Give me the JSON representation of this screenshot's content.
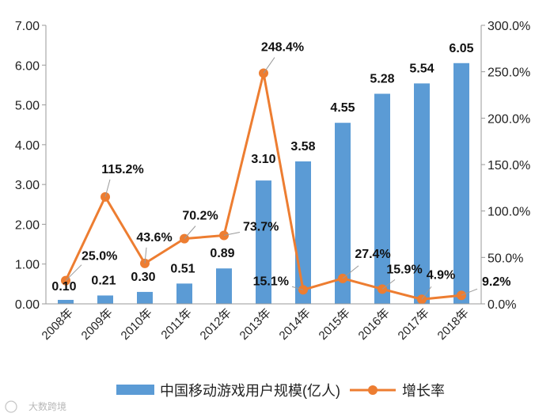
{
  "chart_data": {
    "type": "bar",
    "categories": [
      "2008年",
      "2009年",
      "2010年",
      "2011年",
      "2012年",
      "2013年",
      "2014年",
      "2015年",
      "2016年",
      "2017年",
      "2018年"
    ],
    "series": [
      {
        "name": "中国移动游戏用户规模(亿人)",
        "type": "bar",
        "axis": "left",
        "values": [
          0.1,
          0.21,
          0.3,
          0.51,
          0.89,
          3.1,
          3.58,
          4.55,
          5.28,
          5.54,
          6.05
        ],
        "labels": [
          "0.10",
          "0.21",
          "0.30",
          "0.51",
          "0.89",
          "3.10",
          "3.58",
          "4.55",
          "5.28",
          "5.54",
          "6.05"
        ],
        "color": "#5b9bd5"
      },
      {
        "name": "增长率",
        "type": "line",
        "axis": "right",
        "values": [
          25.0,
          115.2,
          43.6,
          70.2,
          73.7,
          248.4,
          15.1,
          27.4,
          15.9,
          4.9,
          9.2
        ],
        "labels": [
          "25.0%",
          "115.2%",
          "43.6%",
          "70.2%",
          "73.7%",
          "248.4%",
          "15.1%",
          "27.4%",
          "15.9%",
          "4.9%",
          "9.2%"
        ],
        "color": "#ed7d31"
      }
    ],
    "y_left": {
      "min": 0,
      "max": 7,
      "ticks": [
        "0.00",
        "1.00",
        "2.00",
        "3.00",
        "4.00",
        "5.00",
        "6.00",
        "7.00"
      ]
    },
    "y_right": {
      "min": 0,
      "max": 300,
      "ticks": [
        "0.0%",
        "50.0%",
        "100.0%",
        "150.0%",
        "200.0%",
        "250.0%",
        "300.0%"
      ]
    },
    "grid": false,
    "legend": "bottom"
  },
  "watermark": "大数跨境"
}
